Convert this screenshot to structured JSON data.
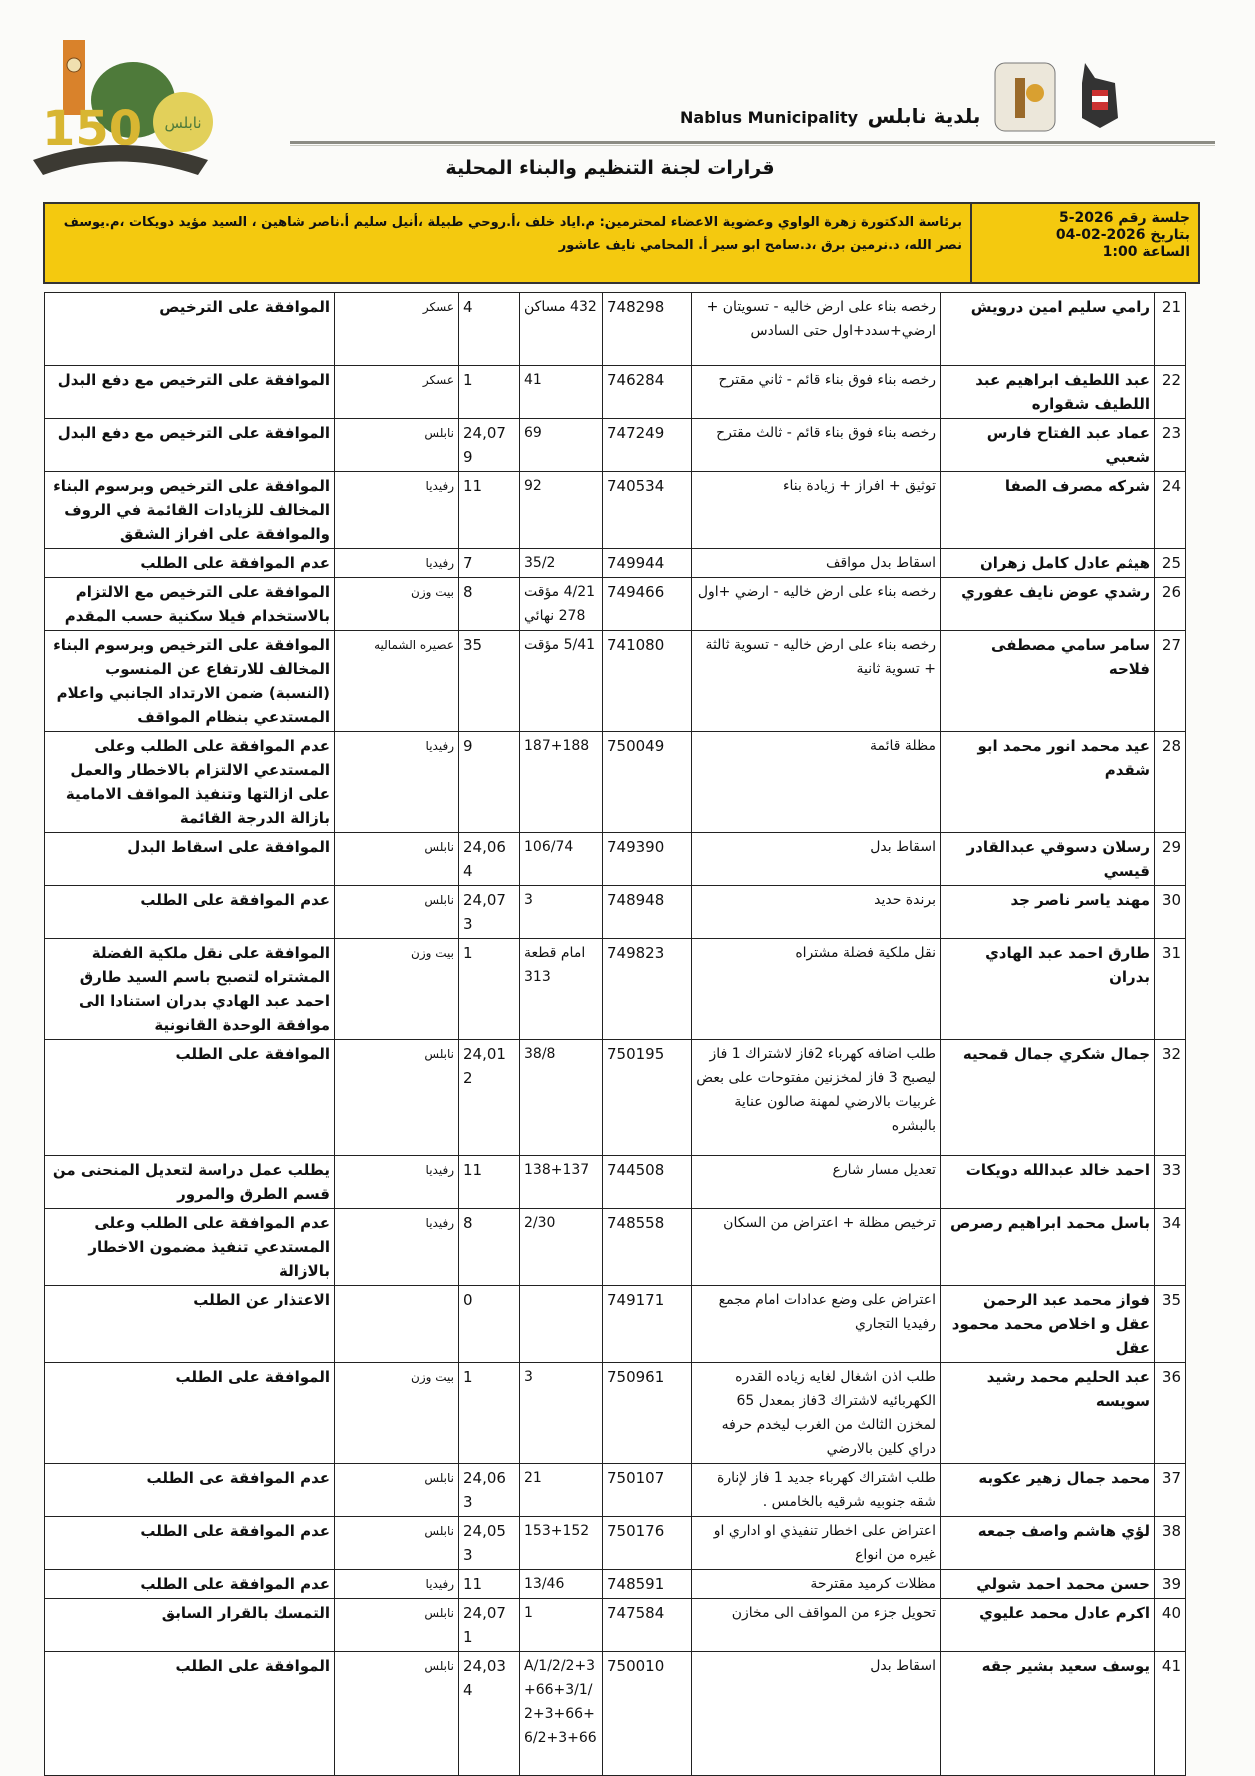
{
  "header": {
    "brand_en": "Nablus Municipality",
    "brand_ar": "بلدية نابلس",
    "logo_text": "نابلس",
    "logo_number": "150",
    "title": "قرارات لجنة التنظيم والبناء المحلية"
  },
  "session": {
    "number": "جلسة رقم 2026-5",
    "date": "بتاريخ 2026-02-04",
    "time": "الساعة 1:00",
    "members": "برئاسة الدكتورة زهرة الواوي وعضوية الاعضاء لمحترمين: م.اياد خلف ،أ.روحي طبيلة ،أنيل سليم أ.ناصر شاهين ، السيد مؤيد دويكات ،م.يوسف نصر الله، د.نرمين برق ،د.سامح ابو سير أ. المحامي نايف عاشور"
  },
  "rows": [
    {
      "num": "21",
      "name": "رامي سليم امين درويش",
      "desc": "رخصه بناء على ارض خاليه - تسويتان + ارضي+سدد+اول حتى السادس",
      "req": "748298",
      "parcel": "432 مساكن",
      "block": "4",
      "area": "عسكر",
      "decision": "الموافقة على الترخيص"
    },
    {
      "num": "22",
      "name": "عبد اللطيف ابراهيم عبد اللطيف شقواره",
      "desc": "رخصه بناء فوق بناء قائم - ثاني مقترح",
      "req": "746284",
      "parcel": "41",
      "block": "1",
      "area": "عسكر",
      "decision": "الموافقة على الترخيص مع دفع البدل"
    },
    {
      "num": "23",
      "name": "عماد عبد الفتاح فارس شعبي",
      "desc": "رخصه بناء فوق بناء قائم - ثالث مقترح",
      "req": "747249",
      "parcel": "69",
      "block": "24,079",
      "area": "نابلس",
      "decision": "الموافقة على الترخيص مع دفع البدل"
    },
    {
      "num": "24",
      "name": "شركه مصرف الصفا",
      "desc": "توثيق + افراز + زيادة بناء",
      "req": "740534",
      "parcel": "92",
      "block": "11",
      "area": "رفيديا",
      "decision": "الموافقة على الترخيص وبرسوم البناء المخالف للزيادات القائمة في الروف والموافقة على افراز الشقق"
    },
    {
      "num": "25",
      "name": "هيثم عادل كامل زهران",
      "desc": "اسقاط بدل مواقف",
      "req": "749944",
      "parcel": "35/2",
      "block": "7",
      "area": "رفيديا",
      "decision": "عدم الموافقة على الطلب"
    },
    {
      "num": "26",
      "name": "رشدي عوض نايف عفوري",
      "desc": "رخصه بناء على ارض خاليه - ارضي +اول",
      "req": "749466",
      "parcel": "4/21 مؤقت 278 نهائي",
      "block": "8",
      "area": "بيت وزن",
      "decision": "الموافقة على الترخيص مع الالتزام بالاستخدام فيلا سكنية حسب المقدم"
    },
    {
      "num": "27",
      "name": "سامر سامي مصطفى فلاحه",
      "desc": "رخصه بناء على ارض خاليه - تسوية ثالثة + تسوية ثانية",
      "req": "741080",
      "parcel": "5/41 مؤقت",
      "block": "35",
      "area": "عصيره الشماليه",
      "decision": "الموافقة على الترخيص وبرسوم البناء المخالف للارتفاع عن المنسوب (النسبة) ضمن الارتداد الجانبي واعلام المستدعي بنظام المواقف"
    },
    {
      "num": "28",
      "name": "عيد محمد انور محمد ابو شقدم",
      "desc": "مظلة قائمة",
      "req": "750049",
      "parcel": "187+188",
      "block": "9",
      "area": "رفيديا",
      "decision": "عدم الموافقة على الطلب وعلى المستدعي الالتزام بالاخطار والعمل على ازالتها وتنفيذ المواقف الامامية بازالة الدرجة القائمة"
    },
    {
      "num": "29",
      "name": "رسلان دسوقي عبدالقادر قيسي",
      "desc": "اسقاط بدل",
      "req": "749390",
      "parcel": "106/74",
      "block": "24,064",
      "area": "نابلس",
      "decision": "الموافقة على اسقاط البدل"
    },
    {
      "num": "30",
      "name": "مهند ياسر ناصر جد",
      "desc": "برندة حديد",
      "req": "748948",
      "parcel": "3",
      "block": "24,073",
      "area": "نابلس",
      "decision": "عدم الموافقة على الطلب"
    },
    {
      "num": "31",
      "name": "طارق احمد عبد الهادي بدران",
      "desc": "نقل ملكية فضلة مشتراه",
      "req": "749823",
      "parcel": "امام قطعة 313",
      "block": "1",
      "area": "بيت وزن",
      "decision": "الموافقة على نقل ملكية الفضلة المشتراه لتصبح باسم السيد طارق احمد عبد الهادي بدران استنادا الى موافقة الوحدة القانونية"
    },
    {
      "num": "32",
      "name": "جمال شكري جمال قمحيه",
      "desc": "طلب اضافه كهرباء 2فاز لاشتراك 1 فاز ليصبح 3 فاز لمخزنين مفتوحات على بعض غربيات بالارضي لمهنة صالون عناية بالبشره",
      "req": "750195",
      "parcel": "38/8",
      "block": "24,012",
      "area": "نابلس",
      "decision": "الموافقة على الطلب"
    },
    {
      "num": "33",
      "name": "احمد خالد عبدالله دويكات",
      "desc": "تعديل مسار شارع",
      "req": "744508",
      "parcel": "138+137",
      "block": "11",
      "area": "رفيديا",
      "decision": "يطلب عمل دراسة لتعديل المنحنى من قسم الطرق والمرور"
    },
    {
      "num": "34",
      "name": "باسل محمد ابراهيم رصرص",
      "desc": "ترخيص مظلة + اعتراض من السكان",
      "req": "748558",
      "parcel": "2/30",
      "block": "8",
      "area": "رفيديا",
      "decision": "عدم الموافقة على الطلب وعلى المستدعي تنفيذ مضمون الاخطار بالازالة"
    },
    {
      "num": "35",
      "name": "فواز محمد عبد الرحمن عقل و اخلاص محمد محمود عقل",
      "desc": "اعتراض على وضع عدادات امام مجمع رفيديا التجاري",
      "req": "749171",
      "parcel": "",
      "block": "0",
      "area": "",
      "decision": "الاعتذار عن الطلب"
    },
    {
      "num": "36",
      "name": "عبد الحليم محمد رشيد سويسه",
      "desc": "طلب اذن اشغال لغايه زياده القدره الكهربائيه لاشتراك 3فاز بمعدل 65 لمخزن الثالث من الغرب ليخدم حرفه دراي كلين بالارضي",
      "req": "750961",
      "parcel": "3",
      "block": "1",
      "area": "بيت وزن",
      "decision": "الموافقة على الطلب"
    },
    {
      "num": "37",
      "name": "محمد جمال زهير عكوبه",
      "desc": "طلب اشتراك كهرباء جديد 1 فاز لإنارة شقه جنوبيه شرقيه بالخامس .",
      "req": "750107",
      "parcel": "21",
      "block": "24,063",
      "area": "نابلس",
      "decision": "عدم الموافقة عى الطلب"
    },
    {
      "num": "38",
      "name": "لؤي هاشم واصف جمعه",
      "desc": "اعتراض على اخطار تنفيذي او اداري او غيره من انواع",
      "req": "750176",
      "parcel": "153+152",
      "block": "24,053",
      "area": "نابلس",
      "decision": "عدم الموافقة على الطلب"
    },
    {
      "num": "39",
      "name": "حسن محمد احمد شولي",
      "desc": "مظلات كرميد مقترحة",
      "req": "748591",
      "parcel": "13/46",
      "block": "11",
      "area": "رفيديا",
      "decision": "عدم الموافقة على الطلب"
    },
    {
      "num": "40",
      "name": "اكرم عادل محمد عليوي",
      "desc": "تحويل جزء من المواقف الى مخازن",
      "req": "747584",
      "parcel": "1",
      "block": "24,071",
      "area": "نابلس",
      "decision": "التمسك بالقرار السابق"
    },
    {
      "num": "41",
      "name": "يوسف سعيد بشير جقه",
      "desc": "اسقاط بدل",
      "req": "750010",
      "parcel": "A/1/2/2+3+66+3/1/2+3+66+6/2+3+66",
      "block": "24,034",
      "area": "نابلس",
      "decision": "الموافقة على الطلب"
    }
  ]
}
